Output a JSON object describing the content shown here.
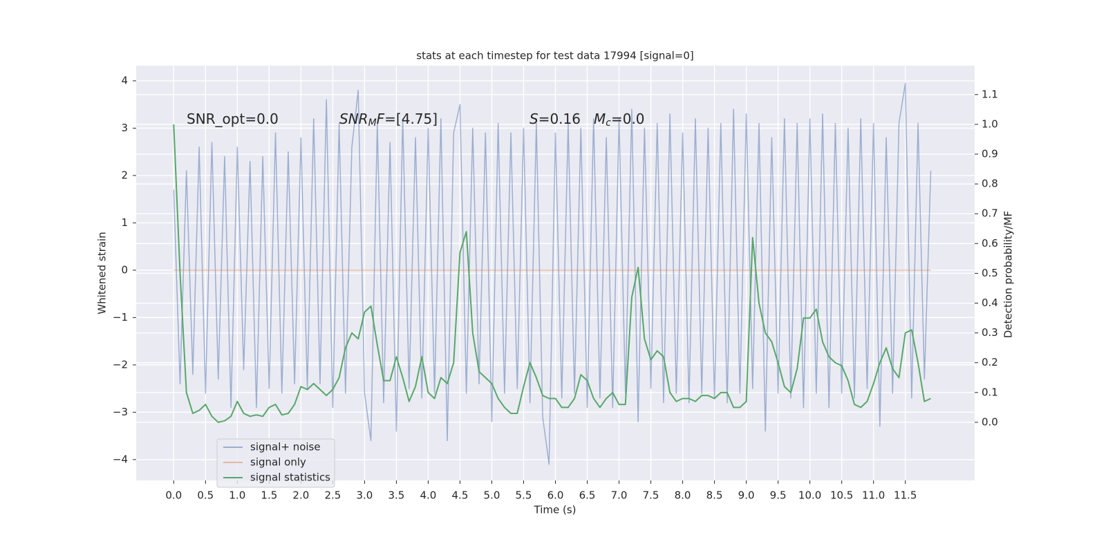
{
  "chart_data": {
    "type": "line",
    "title": "stats at each timestep for test data 17994 [signal=0]",
    "xlabel": "Time (s)",
    "ylabel": "Whitened strain",
    "y2label": "Detection probability/MF",
    "xlim": [
      -0.59,
      12.59
    ],
    "ylim": [
      -4.44,
      4.32
    ],
    "y2lim": [
      -0.195,
      1.197
    ],
    "xticks": [
      {
        "value": 0,
        "label": "0.0"
      },
      {
        "value": 0.5,
        "label": "0.5"
      },
      {
        "value": 1,
        "label": "1.0"
      },
      {
        "value": 1.5,
        "label": "1.5"
      },
      {
        "value": 2,
        "label": "2.0"
      },
      {
        "value": 2.5,
        "label": "2.5"
      },
      {
        "value": 3,
        "label": "3.0"
      },
      {
        "value": 3.5,
        "label": "3.5"
      },
      {
        "value": 4,
        "label": "4.0"
      },
      {
        "value": 4.5,
        "label": "4.5"
      },
      {
        "value": 5,
        "label": "5.0"
      },
      {
        "value": 5.5,
        "label": "5.5"
      },
      {
        "value": 6,
        "label": "6.0"
      },
      {
        "value": 6.5,
        "label": "6.5"
      },
      {
        "value": 7,
        "label": "7.0"
      },
      {
        "value": 7.5,
        "label": "7.5"
      },
      {
        "value": 8,
        "label": "8.0"
      },
      {
        "value": 8.5,
        "label": "8.5"
      },
      {
        "value": 9,
        "label": "9.0"
      },
      {
        "value": 9.5,
        "label": "9.5"
      },
      {
        "value": 10,
        "label": "10.0"
      },
      {
        "value": 10.5,
        "label": "10.5"
      },
      {
        "value": 11,
        "label": "11.0"
      },
      {
        "value": 11.5,
        "label": "11.5"
      }
    ],
    "yticks": [
      {
        "value": -4,
        "label": "−4"
      },
      {
        "value": -3,
        "label": "−3"
      },
      {
        "value": -2,
        "label": "−2"
      },
      {
        "value": -1,
        "label": "−1"
      },
      0,
      1,
      2,
      3,
      4
    ],
    "y2ticks": [
      {
        "value": 0,
        "label": "0.0"
      },
      {
        "value": 0.1,
        "label": "0.1"
      },
      {
        "value": 0.2,
        "label": "0.2"
      },
      {
        "value": 0.3,
        "label": "0.3"
      },
      {
        "value": 0.4,
        "label": "0.4"
      },
      {
        "value": 0.5,
        "label": "0.5"
      },
      {
        "value": 0.6,
        "label": "0.6"
      },
      {
        "value": 0.7,
        "label": "0.7"
      },
      {
        "value": 0.8,
        "label": "0.8"
      },
      {
        "value": 0.9,
        "label": "0.9"
      },
      {
        "value": 1,
        "label": "1.0"
      },
      {
        "value": 1.1,
        "label": "1.1"
      }
    ],
    "grid": true,
    "legend_loc": "lower left",
    "x": [
      0,
      0.1,
      0.2,
      0.3,
      0.4,
      0.5,
      0.6,
      0.7,
      0.8,
      0.9,
      1,
      1.1,
      1.2,
      1.3,
      1.4,
      1.5,
      1.6,
      1.7,
      1.8,
      1.9,
      2,
      2.1,
      2.2,
      2.3,
      2.4,
      2.5,
      2.6,
      2.7,
      2.8,
      2.9,
      3,
      3.1,
      3.2,
      3.3,
      3.4,
      3.5,
      3.6,
      3.7,
      3.8,
      3.9,
      4,
      4.1,
      4.2,
      4.3,
      4.4,
      4.5,
      4.6,
      4.7,
      4.8,
      4.9,
      5,
      5.1,
      5.2,
      5.3,
      5.4,
      5.5,
      5.6,
      5.7,
      5.8,
      5.9,
      6,
      6.1,
      6.2,
      6.3,
      6.4,
      6.5,
      6.6,
      6.7,
      6.8,
      6.9,
      7,
      7.1,
      7.2,
      7.3,
      7.4,
      7.5,
      7.6,
      7.7,
      7.8,
      7.9,
      8,
      8.1,
      8.2,
      8.3,
      8.4,
      8.5,
      8.6,
      8.7,
      8.8,
      8.9,
      9,
      9.1,
      9.2,
      9.3,
      9.4,
      9.5,
      9.6,
      9.7,
      9.8,
      9.9,
      10,
      10.1,
      10.2,
      10.3,
      10.4,
      10.5,
      10.6,
      10.7,
      10.8,
      10.9,
      11,
      11.1,
      11.2,
      11.3,
      11.4,
      11.5,
      11.6,
      11.7,
      11.8,
      11.9
    ],
    "series": [
      {
        "name": "signal+ noise",
        "color": "#4c72b0",
        "opacity": 0.5,
        "axis": "y",
        "values": [
          1.7,
          -2.4,
          2.1,
          -2.2,
          2.6,
          -2.6,
          2.7,
          -2.3,
          2.4,
          -2.9,
          2.6,
          -2.1,
          2.3,
          -2.9,
          2.4,
          -2.5,
          2.9,
          -2.6,
          2.5,
          -2.4,
          2.8,
          -2.5,
          3.2,
          -2.4,
          3.6,
          -2.9,
          3.1,
          -2.6,
          2.6,
          3.8,
          -2.6,
          -3.6,
          3.1,
          -2.8,
          2.7,
          -3.4,
          3.2,
          -2.5,
          2.8,
          -2.7,
          3.0,
          -2.6,
          3.2,
          -3.6,
          2.9,
          3.5,
          -2.6,
          3.0,
          -2.4,
          2.9,
          -3.2,
          3.1,
          -2.6,
          2.9,
          -2.5,
          3.0,
          -2.8,
          3.1,
          -3.1,
          -4.1,
          2.9,
          -2.7,
          3.1,
          -2.6,
          3.0,
          -2.9,
          3.2,
          -2.7,
          2.8,
          -2.9,
          3.2,
          -2.6,
          3.4,
          -3.2,
          3.0,
          -2.5,
          3.1,
          -2.8,
          3.3,
          -2.6,
          2.9,
          -2.8,
          3.2,
          -2.6,
          3.0,
          -2.7,
          3.1,
          -2.8,
          3.4,
          -2.6,
          3.3,
          -2.5,
          3.1,
          -3.4,
          2.8,
          -2.6,
          3.2,
          -2.7,
          3.1,
          -2.9,
          3.2,
          -2.6,
          3.3,
          -2.9,
          3.1,
          -2.6,
          3.0,
          -2.7,
          3.2,
          -2.5,
          3.1,
          -3.3,
          2.8,
          -2.6,
          3.1,
          3.95,
          -2.7,
          3.1,
          -2.3,
          2.1
        ]
      },
      {
        "name": "signal only",
        "color": "#dd8452",
        "opacity": 0.5,
        "axis": "y",
        "x": [
          0,
          11.9
        ],
        "values": [
          0,
          0
        ]
      },
      {
        "name": "signal statistics",
        "color": "#55a868",
        "opacity": 1,
        "axis": "y2",
        "values": [
          1.0,
          0.5,
          0.1,
          0.03,
          0.04,
          0.06,
          0.02,
          0.0,
          0.005,
          0.02,
          0.07,
          0.03,
          0.02,
          0.025,
          0.02,
          0.05,
          0.06,
          0.025,
          0.03,
          0.06,
          0.12,
          0.11,
          0.13,
          0.11,
          0.09,
          0.11,
          0.15,
          0.25,
          0.3,
          0.28,
          0.37,
          0.39,
          0.26,
          0.14,
          0.14,
          0.22,
          0.15,
          0.07,
          0.12,
          0.22,
          0.1,
          0.08,
          0.15,
          0.13,
          0.2,
          0.57,
          0.64,
          0.3,
          0.17,
          0.15,
          0.13,
          0.08,
          0.05,
          0.03,
          0.03,
          0.12,
          0.2,
          0.15,
          0.09,
          0.08,
          0.08,
          0.05,
          0.05,
          0.08,
          0.16,
          0.14,
          0.08,
          0.05,
          0.08,
          0.1,
          0.06,
          0.06,
          0.42,
          0.52,
          0.28,
          0.21,
          0.24,
          0.22,
          0.1,
          0.07,
          0.08,
          0.08,
          0.07,
          0.09,
          0.09,
          0.08,
          0.1,
          0.1,
          0.05,
          0.05,
          0.07,
          0.62,
          0.4,
          0.3,
          0.27,
          0.2,
          0.12,
          0.1,
          0.18,
          0.35,
          0.35,
          0.38,
          0.27,
          0.22,
          0.2,
          0.19,
          0.14,
          0.06,
          0.05,
          0.07,
          0.13,
          0.2,
          0.25,
          0.18,
          0.15,
          0.3,
          0.31,
          0.2,
          0.07,
          0.08
        ]
      }
    ],
    "annotations": [
      {
        "parts": [
          {
            "text": "SNR_opt=0.0"
          }
        ]
      },
      {
        "parts": [
          {
            "text": "SNR",
            "italic": true
          },
          {
            "text": "M",
            "italic": true,
            "sub": true
          },
          {
            "text": "F",
            "italic": true
          },
          {
            "text": "=[4.75]"
          }
        ]
      },
      {
        "parts": [
          {
            "text": "S",
            "italic": true
          },
          {
            "text": "=0.16"
          }
        ]
      },
      {
        "parts": [
          {
            "text": "M",
            "italic": true
          },
          {
            "text": "c",
            "italic": true,
            "sub": true
          },
          {
            "text": "=0.0"
          }
        ]
      }
    ]
  }
}
